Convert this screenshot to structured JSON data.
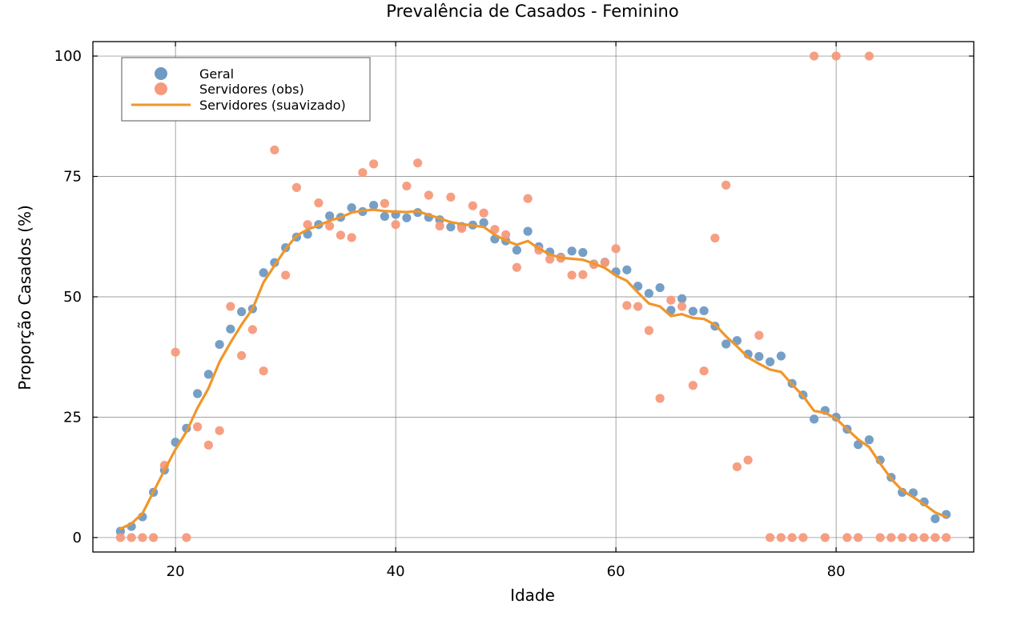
{
  "chart_data": {
    "type": "scatter",
    "title": "Prevalência de Casados - Feminino",
    "xlabel": "Idade",
    "ylabel": "Proporção Casados (%)",
    "xlim": [
      12.5,
      92.5
    ],
    "ylim": [
      -3,
      103
    ],
    "xticks": [
      20,
      40,
      60,
      80
    ],
    "yticks": [
      0,
      25,
      50,
      75,
      100
    ],
    "grid": true,
    "legend_position": "top-left",
    "colors": {
      "geral": "#6f9ac4",
      "servidores_obs": "#f59a7c",
      "servidores_suav": "#f0962a",
      "grid": "#7f7f7f"
    },
    "series": [
      {
        "name": "Geral",
        "kind": "scatter",
        "x": [
          15,
          16,
          17,
          18,
          19,
          20,
          21,
          22,
          23,
          24,
          25,
          26,
          27,
          28,
          29,
          30,
          31,
          32,
          33,
          34,
          35,
          36,
          37,
          38,
          39,
          40,
          41,
          42,
          43,
          44,
          45,
          46,
          47,
          48,
          49,
          50,
          51,
          52,
          53,
          54,
          55,
          56,
          57,
          58,
          59,
          60,
          61,
          62,
          63,
          64,
          65,
          66,
          67,
          68,
          69,
          70,
          71,
          72,
          73,
          74,
          75,
          76,
          77,
          78,
          79,
          80,
          81,
          82,
          83,
          84,
          85,
          86,
          87,
          88,
          89,
          90
        ],
        "y": [
          1.3,
          2.3,
          4.3,
          9.4,
          14.0,
          19.8,
          22.7,
          29.9,
          33.9,
          40.1,
          43.3,
          46.9,
          47.5,
          55.0,
          57.1,
          60.2,
          62.4,
          63.0,
          65.0,
          66.8,
          66.5,
          68.5,
          67.7,
          69.0,
          66.7,
          67.1,
          66.4,
          67.5,
          66.5,
          66.0,
          64.5,
          64.6,
          64.9,
          65.4,
          62.0,
          61.6,
          59.7,
          63.6,
          60.4,
          59.3,
          58.2,
          59.5,
          59.2,
          56.8,
          57.2,
          55.2,
          55.6,
          52.2,
          50.7,
          51.9,
          47.2,
          49.6,
          47.0,
          47.1,
          43.9,
          40.2,
          40.9,
          38.1,
          37.6,
          36.5,
          37.7,
          32.0,
          29.6,
          24.6,
          26.4,
          25.0,
          22.5,
          19.3,
          20.3,
          16.1,
          12.5,
          9.4,
          9.3,
          7.4,
          3.9,
          4.8
        ]
      },
      {
        "name": "Servidores (obs)",
        "kind": "scatter",
        "x": [
          15,
          16,
          17,
          18,
          19,
          20,
          21,
          22,
          23,
          24,
          25,
          26,
          27,
          28,
          29,
          30,
          31,
          32,
          33,
          34,
          35,
          36,
          37,
          38,
          39,
          40,
          41,
          42,
          43,
          44,
          45,
          46,
          47,
          48,
          49,
          50,
          51,
          52,
          53,
          54,
          55,
          56,
          57,
          58,
          59,
          60,
          61,
          62,
          63,
          64,
          65,
          66,
          67,
          68,
          69,
          70,
          71,
          72,
          73,
          74,
          75,
          76,
          77,
          78,
          79,
          80,
          81,
          82,
          83,
          84,
          85,
          86,
          87,
          88,
          89,
          90
        ],
        "y": [
          0,
          0,
          0,
          0,
          15.0,
          38.5,
          0,
          23.0,
          19.2,
          22.2,
          48.0,
          37.8,
          43.2,
          34.6,
          80.5,
          54.5,
          72.7,
          65.0,
          69.5,
          64.7,
          62.8,
          62.3,
          75.8,
          77.6,
          69.4,
          65.0,
          73.0,
          77.8,
          71.1,
          64.7,
          70.7,
          64.2,
          68.9,
          67.4,
          64.0,
          62.9,
          56.1,
          70.4,
          59.7,
          57.8,
          58.0,
          54.5,
          54.6,
          56.7,
          57.1,
          60.0,
          48.2,
          48.0,
          43.0,
          28.9,
          49.3,
          48.0,
          31.6,
          34.6,
          62.2,
          73.2,
          14.7,
          16.1,
          42.0,
          0,
          0,
          0,
          0,
          100,
          0,
          100,
          0,
          0,
          100,
          0,
          0,
          0,
          0,
          0,
          0,
          0
        ]
      },
      {
        "name": "Servidores (suavizado)",
        "kind": "line",
        "x": [
          15,
          16,
          17,
          18,
          19,
          20,
          21,
          22,
          23,
          24,
          25,
          26,
          27,
          28,
          29,
          30,
          31,
          32,
          33,
          34,
          35,
          36,
          37,
          38,
          39,
          40,
          41,
          42,
          43,
          44,
          45,
          46,
          47,
          48,
          49,
          50,
          51,
          52,
          53,
          54,
          55,
          56,
          57,
          58,
          59,
          60,
          61,
          62,
          63,
          64,
          65,
          66,
          67,
          68,
          69,
          70,
          71,
          72,
          73,
          74,
          75,
          76,
          77,
          78,
          79,
          80,
          81,
          82,
          83,
          84,
          85,
          86,
          87,
          88,
          89,
          90
        ],
        "y": [
          1.8,
          2.9,
          5.0,
          9.5,
          14.0,
          18.3,
          22.0,
          26.9,
          31.0,
          36.5,
          40.5,
          44.2,
          47.5,
          53.0,
          56.5,
          59.9,
          62.7,
          64.0,
          64.8,
          65.8,
          66.5,
          67.5,
          67.9,
          68.1,
          67.8,
          67.7,
          67.6,
          67.8,
          67.0,
          66.3,
          65.5,
          65.1,
          64.8,
          64.5,
          62.9,
          61.7,
          60.8,
          61.6,
          60.0,
          58.8,
          58.1,
          57.9,
          57.7,
          56.9,
          56.0,
          54.4,
          53.3,
          50.9,
          48.6,
          48.0,
          46.0,
          46.4,
          45.6,
          45.4,
          44.2,
          41.8,
          39.7,
          37.4,
          36.1,
          34.9,
          34.4,
          31.8,
          29.4,
          26.3,
          25.9,
          24.7,
          22.5,
          20.4,
          18.8,
          15.4,
          12.2,
          9.8,
          8.4,
          6.9,
          5.2,
          4.3
        ]
      }
    ]
  }
}
